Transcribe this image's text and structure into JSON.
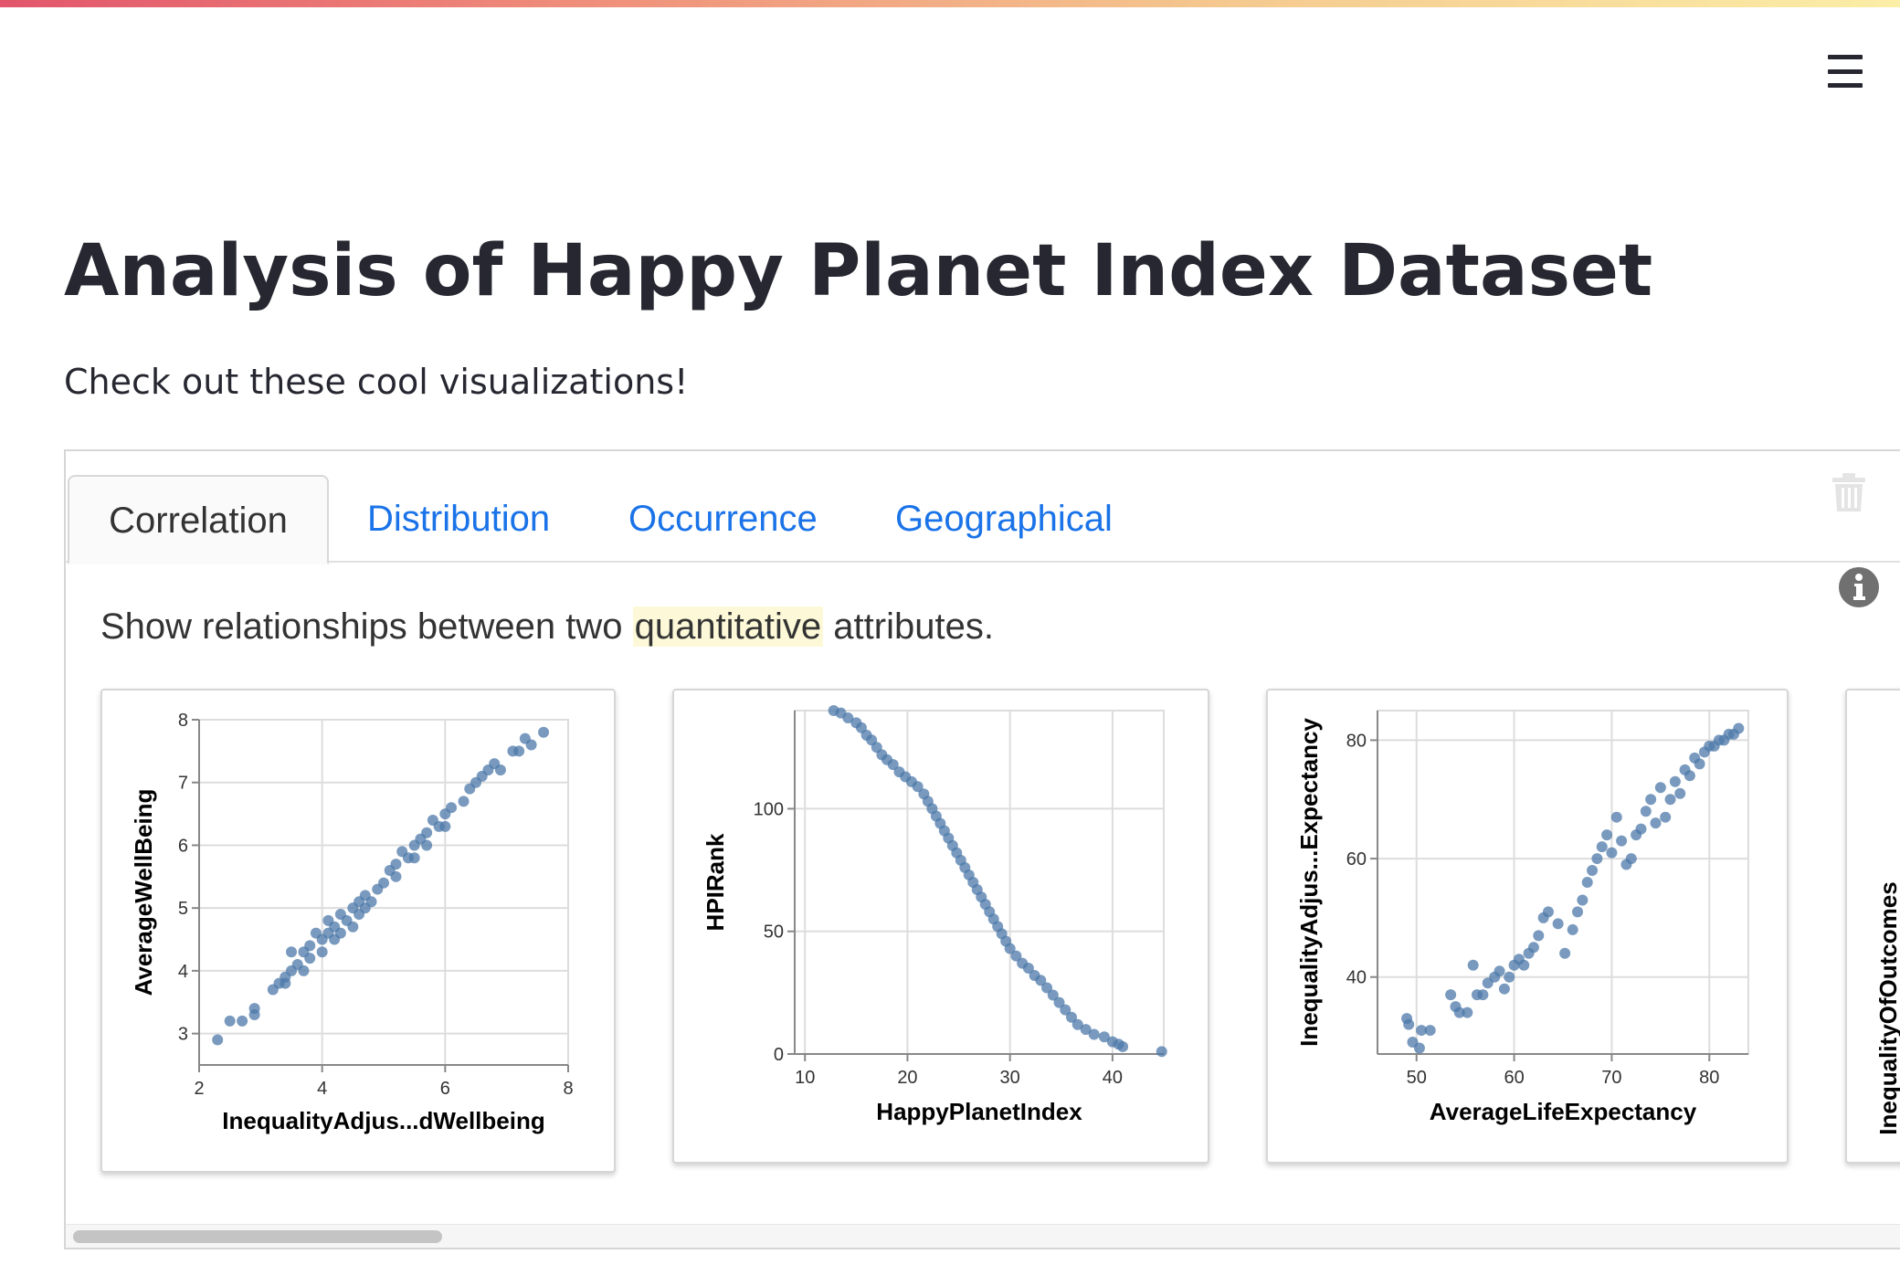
{
  "header": {
    "title": "Analysis of Happy Planet Index Dataset",
    "subtitle": "Check out these cool visualizations!",
    "menu_icon": "hamburger-menu-icon",
    "accent_gradient": [
      "#e2556c",
      "#f5c98f",
      "#fbeea6"
    ]
  },
  "tabs": [
    {
      "label": "Correlation",
      "active": true
    },
    {
      "label": "Distribution",
      "active": false
    },
    {
      "label": "Occurrence",
      "active": false
    },
    {
      "label": "Geographical",
      "active": false
    }
  ],
  "tab_colors": {
    "active": "#333333",
    "inactive": "#1a73e8"
  },
  "icons": {
    "delete": "trash-icon",
    "info": "info-icon"
  },
  "description": {
    "before": "Show relationships between two",
    "highlight": "quantitative",
    "after": "attributes."
  },
  "chart_data": [
    {
      "type": "scatter",
      "xlabel": "InequalityAdjus...dWellbeing",
      "ylabel": "AverageWellBeing",
      "xlim": [
        2,
        8
      ],
      "ylim": [
        2.5,
        8
      ],
      "xticks": [
        2,
        4,
        6,
        8
      ],
      "yticks": [
        3,
        4,
        5,
        6,
        7,
        8
      ],
      "grid": true,
      "color": "#4c78a8",
      "points": [
        [
          2.3,
          2.9
        ],
        [
          2.5,
          3.2
        ],
        [
          2.7,
          3.2
        ],
        [
          2.9,
          3.3
        ],
        [
          2.9,
          3.4
        ],
        [
          3.2,
          3.7
        ],
        [
          3.3,
          3.8
        ],
        [
          3.4,
          3.9
        ],
        [
          3.4,
          3.8
        ],
        [
          3.5,
          4.0
        ],
        [
          3.5,
          4.3
        ],
        [
          3.6,
          4.1
        ],
        [
          3.7,
          4.0
        ],
        [
          3.7,
          4.3
        ],
        [
          3.8,
          4.4
        ],
        [
          3.8,
          4.2
        ],
        [
          3.9,
          4.6
        ],
        [
          4.0,
          4.5
        ],
        [
          4.0,
          4.3
        ],
        [
          4.1,
          4.6
        ],
        [
          4.1,
          4.8
        ],
        [
          4.2,
          4.5
        ],
        [
          4.2,
          4.7
        ],
        [
          4.3,
          4.9
        ],
        [
          4.3,
          4.6
        ],
        [
          4.4,
          4.8
        ],
        [
          4.5,
          5.0
        ],
        [
          4.5,
          4.7
        ],
        [
          4.6,
          5.1
        ],
        [
          4.6,
          4.9
        ],
        [
          4.7,
          5.2
        ],
        [
          4.7,
          5.0
        ],
        [
          4.8,
          5.1
        ],
        [
          4.9,
          5.3
        ],
        [
          5.0,
          5.4
        ],
        [
          5.1,
          5.6
        ],
        [
          5.2,
          5.5
        ],
        [
          5.2,
          5.7
        ],
        [
          5.3,
          5.9
        ],
        [
          5.4,
          5.8
        ],
        [
          5.5,
          6.0
        ],
        [
          5.5,
          5.8
        ],
        [
          5.6,
          6.1
        ],
        [
          5.7,
          6.0
        ],
        [
          5.7,
          6.2
        ],
        [
          5.8,
          6.4
        ],
        [
          5.9,
          6.3
        ],
        [
          6.0,
          6.5
        ],
        [
          6.0,
          6.3
        ],
        [
          6.1,
          6.6
        ],
        [
          6.3,
          6.7
        ],
        [
          6.4,
          6.9
        ],
        [
          6.5,
          7.0
        ],
        [
          6.6,
          7.1
        ],
        [
          6.7,
          7.2
        ],
        [
          6.8,
          7.3
        ],
        [
          6.9,
          7.2
        ],
        [
          7.1,
          7.5
        ],
        [
          7.2,
          7.5
        ],
        [
          7.3,
          7.7
        ],
        [
          7.4,
          7.6
        ],
        [
          7.6,
          7.8
        ]
      ]
    },
    {
      "type": "scatter",
      "xlabel": "HappyPlanetIndex",
      "ylabel": "HPIRank",
      "xlim": [
        9,
        45
      ],
      "ylim": [
        0,
        140
      ],
      "xticks": [
        10,
        20,
        30,
        40
      ],
      "yticks": [
        0,
        50,
        100
      ],
      "grid": true,
      "color": "#4c78a8",
      "points": [
        [
          12.8,
          140
        ],
        [
          13.5,
          139
        ],
        [
          14.2,
          137
        ],
        [
          15.0,
          135
        ],
        [
          15.5,
          133
        ],
        [
          16.0,
          130
        ],
        [
          16.5,
          128
        ],
        [
          17.0,
          125
        ],
        [
          17.5,
          122
        ],
        [
          18.0,
          120
        ],
        [
          18.6,
          118
        ],
        [
          19.2,
          115
        ],
        [
          19.8,
          113
        ],
        [
          20.4,
          111
        ],
        [
          21.0,
          109
        ],
        [
          21.6,
          106
        ],
        [
          22.0,
          103
        ],
        [
          22.4,
          100
        ],
        [
          22.8,
          97
        ],
        [
          23.2,
          94
        ],
        [
          23.6,
          91
        ],
        [
          24.0,
          88
        ],
        [
          24.4,
          85
        ],
        [
          24.8,
          82
        ],
        [
          25.2,
          79
        ],
        [
          25.6,
          76
        ],
        [
          26.0,
          73
        ],
        [
          26.4,
          70
        ],
        [
          26.8,
          67
        ],
        [
          27.2,
          64
        ],
        [
          27.6,
          61
        ],
        [
          28.0,
          58
        ],
        [
          28.4,
          55
        ],
        [
          28.8,
          52
        ],
        [
          29.2,
          49
        ],
        [
          29.6,
          46
        ],
        [
          30.0,
          43
        ],
        [
          30.6,
          40
        ],
        [
          31.2,
          37
        ],
        [
          31.8,
          35
        ],
        [
          32.4,
          32
        ],
        [
          33.0,
          30
        ],
        [
          33.6,
          27
        ],
        [
          34.2,
          24
        ],
        [
          34.8,
          21
        ],
        [
          35.4,
          18
        ],
        [
          36.0,
          15
        ],
        [
          36.6,
          12
        ],
        [
          37.4,
          10
        ],
        [
          38.2,
          8
        ],
        [
          39.2,
          7
        ],
        [
          40.0,
          5
        ],
        [
          40.6,
          4
        ],
        [
          41.0,
          3
        ],
        [
          44.8,
          1
        ]
      ]
    },
    {
      "type": "scatter",
      "xlabel": "AverageLifeExpectancy",
      "ylabel": "InequalityAdjus...Expectancy",
      "xlim": [
        46,
        84
      ],
      "ylim": [
        27,
        85
      ],
      "xticks": [
        50,
        60,
        70,
        80
      ],
      "yticks": [
        40,
        60,
        80
      ],
      "grid": true,
      "color": "#4c78a8",
      "points": [
        [
          49,
          33
        ],
        [
          49.2,
          32
        ],
        [
          49.6,
          29
        ],
        [
          50.3,
          28
        ],
        [
          50.5,
          31
        ],
        [
          51.4,
          31
        ],
        [
          53.5,
          37
        ],
        [
          54.0,
          35
        ],
        [
          54.4,
          34
        ],
        [
          55.2,
          34
        ],
        [
          55.8,
          42
        ],
        [
          56.2,
          37
        ],
        [
          56.8,
          37
        ],
        [
          57.3,
          39
        ],
        [
          58.0,
          40
        ],
        [
          58.5,
          41
        ],
        [
          59.0,
          38
        ],
        [
          59.5,
          40
        ],
        [
          60.0,
          42
        ],
        [
          60.5,
          43
        ],
        [
          61.0,
          42
        ],
        [
          61.5,
          44
        ],
        [
          62.0,
          45
        ],
        [
          62.5,
          47
        ],
        [
          63.0,
          50
        ],
        [
          63.5,
          51
        ],
        [
          64.5,
          49
        ],
        [
          65.2,
          44
        ],
        [
          66.0,
          48
        ],
        [
          66.5,
          51
        ],
        [
          67.0,
          53
        ],
        [
          67.5,
          56
        ],
        [
          68.0,
          58
        ],
        [
          68.5,
          60
        ],
        [
          69.0,
          62
        ],
        [
          69.5,
          64
        ],
        [
          70.0,
          61
        ],
        [
          70.5,
          67
        ],
        [
          71.0,
          63
        ],
        [
          71.5,
          59
        ],
        [
          72.0,
          60
        ],
        [
          72.5,
          64
        ],
        [
          73.0,
          65
        ],
        [
          73.5,
          68
        ],
        [
          74.0,
          70
        ],
        [
          74.5,
          66
        ],
        [
          75.0,
          72
        ],
        [
          75.5,
          67
        ],
        [
          76.0,
          70
        ],
        [
          76.5,
          73
        ],
        [
          77.0,
          71
        ],
        [
          77.5,
          75
        ],
        [
          78.0,
          74
        ],
        [
          78.5,
          77
        ],
        [
          79.0,
          76
        ],
        [
          79.5,
          78
        ],
        [
          80.0,
          79
        ],
        [
          80.5,
          79
        ],
        [
          81.0,
          80
        ],
        [
          81.5,
          80
        ],
        [
          82.0,
          81
        ],
        [
          82.5,
          81
        ],
        [
          83.0,
          82
        ]
      ]
    }
  ],
  "partial_chart": {
    "ylabel": "InequalityOfOutcomes"
  }
}
